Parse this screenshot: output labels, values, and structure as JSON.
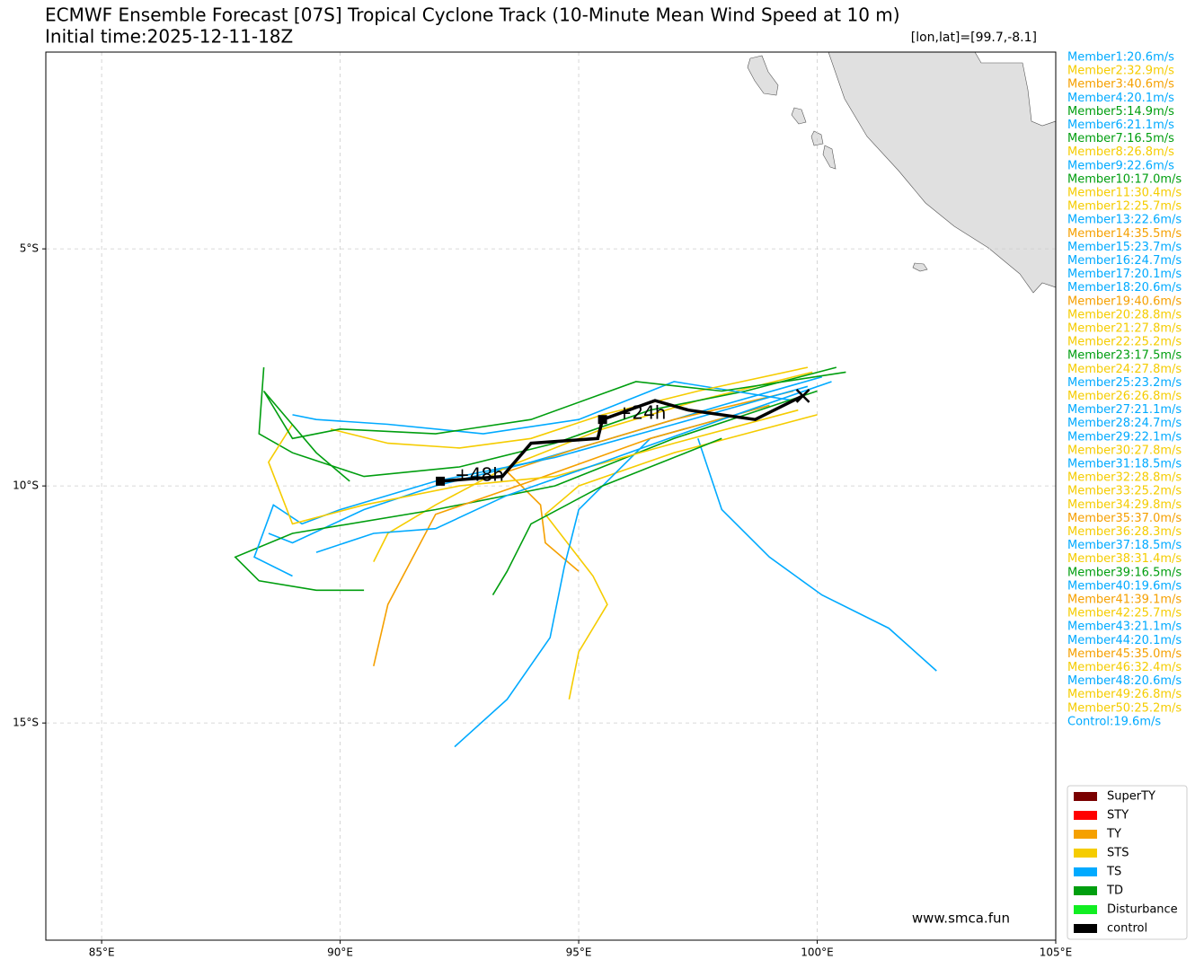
{
  "chart_data": {
    "type": "track",
    "title": "ECMWF Ensemble Forecast [07S] Tropical Cyclone Track (10-Minute Mean Wind Speed at 10 m)",
    "subtitle": "Initial time:2025-12-11-18Z",
    "position_note": "[lon,lat]=[99.7,-8.1]",
    "watermark": "www.smca.fun",
    "xlim": [
      83.83,
      105.0
    ],
    "ylim": [
      -19.58,
      -0.85
    ],
    "xticks": [
      {
        "value": 85,
        "label": "85°E"
      },
      {
        "value": 90,
        "label": "90°E"
      },
      {
        "value": 95,
        "label": "95°E"
      },
      {
        "value": 100,
        "label": "100°E"
      },
      {
        "value": 105,
        "label": "105°E"
      }
    ],
    "yticks": [
      {
        "value": -5,
        "label": "5°S"
      },
      {
        "value": -10,
        "label": "10°S"
      },
      {
        "value": -15,
        "label": "15°S"
      }
    ],
    "grid": true,
    "legend": [
      {
        "name": "SuperTY",
        "color": "#7a0000"
      },
      {
        "name": "STY",
        "color": "#ff0000"
      },
      {
        "name": "TY",
        "color": "#f5a000"
      },
      {
        "name": "STS",
        "color": "#f5cc00"
      },
      {
        "name": "TS",
        "color": "#00aaff"
      },
      {
        "name": "TD",
        "color": "#009e0f"
      },
      {
        "name": "Disturbance",
        "color": "#11ee22"
      },
      {
        "name": "control",
        "color": "#000000"
      }
    ],
    "members": [
      {
        "label": "Member1:20.6m/s",
        "color": "#00aaff",
        "x": [
          100.1,
          98.0,
          96.0,
          94.0,
          92.0,
          90.5,
          89.0,
          88.5
        ],
        "y": [
          -7.7,
          -8.3,
          -8.9,
          -9.5,
          -10.0,
          -10.5,
          -11.2,
          -11.0
        ]
      },
      {
        "label": "Member2:32.9m/s",
        "color": "#f5cc00",
        "x": [
          99.9,
          97.5,
          95.5,
          93.5,
          92.0,
          91.0,
          90.7
        ],
        "y": [
          -7.6,
          -8.2,
          -8.8,
          -9.6,
          -10.4,
          -11.0,
          -11.6
        ]
      },
      {
        "label": "Member3:40.6m/s",
        "color": "#f5a000",
        "x": [
          99.5,
          97.0,
          95.0,
          93.5,
          94.2,
          94.3,
          95.0
        ],
        "y": [
          -8.0,
          -8.6,
          -9.2,
          -9.7,
          -10.4,
          -11.2,
          -11.8
        ]
      },
      {
        "label": "Member4:20.1m/s",
        "color": "#00aaff",
        "x": [
          97.5,
          98.0,
          99.0,
          100.1,
          101.5,
          102.5
        ],
        "y": [
          -9.0,
          -10.5,
          -11.5,
          -12.3,
          -13.0,
          -13.9
        ]
      },
      {
        "label": "Member5:14.9m/s",
        "color": "#009e0f",
        "x": [
          100.4,
          98.5,
          96.5,
          94.5,
          92.5,
          90.5,
          89.0,
          88.3,
          88.4
        ],
        "y": [
          -7.5,
          -8.0,
          -8.4,
          -9.1,
          -9.6,
          -9.8,
          -9.3,
          -8.9,
          -7.5
        ]
      },
      {
        "label": "Member6:21.1m/s",
        "color": "#00aaff",
        "x": [
          99.5,
          97.0,
          95.0,
          93.0,
          91.0,
          89.5,
          89.0
        ],
        "y": [
          -8.2,
          -7.8,
          -8.6,
          -8.9,
          -8.7,
          -8.6,
          -8.5
        ]
      },
      {
        "label": "Member7:16.5m/s",
        "color": "#009e0f"
      },
      {
        "label": "Member8:26.8m/s",
        "color": "#f5cc00",
        "x": [
          100.0,
          97.0,
          95.0,
          94.3,
          95.3,
          95.6,
          95.0,
          94.8
        ],
        "y": [
          -8.5,
          -9.3,
          -10.0,
          -10.6,
          -11.9,
          -12.5,
          -13.5,
          -14.5
        ]
      },
      {
        "label": "Member9:22.6m/s",
        "color": "#00aaff",
        "x": [
          99.0,
          96.5,
          95.0,
          94.7,
          94.4,
          93.5,
          92.4
        ],
        "y": [
          -8.3,
          -9.0,
          -10.5,
          -11.7,
          -13.2,
          -14.5,
          -15.5
        ]
      },
      {
        "label": "Member10:17.0m/s",
        "color": "#009e0f",
        "x": [
          100.0,
          97.0,
          94.5,
          92.0,
          89.0,
          87.8,
          88.3,
          89.5,
          90.5
        ],
        "y": [
          -8.0,
          -9.0,
          -10.0,
          -10.5,
          -11.0,
          -11.5,
          -12.0,
          -12.2,
          -12.2
        ]
      },
      {
        "label": "Member11:30.4m/s",
        "color": "#f5cc00"
      },
      {
        "label": "Member12:25.7m/s",
        "color": "#f5cc00",
        "x": [
          99.8,
          97.5,
          95.5,
          94.0,
          92.5,
          91.0,
          89.8
        ],
        "y": [
          -7.5,
          -8.0,
          -8.5,
          -9.0,
          -9.2,
          -9.1,
          -8.8
        ]
      },
      {
        "label": "Member13:22.6m/s",
        "color": "#00aaff"
      },
      {
        "label": "Member14:35.5m/s",
        "color": "#f5a000",
        "x": [
          99.0,
          96.5,
          94.0,
          92.0,
          91.0,
          90.7
        ],
        "y": [
          -8.3,
          -9.0,
          -9.9,
          -10.6,
          -12.5,
          -13.8
        ]
      },
      {
        "label": "Member15:23.7m/s",
        "color": "#00aaff",
        "x": [
          99.8,
          97.0,
          94.5,
          92.0,
          90.0,
          89.2,
          88.6,
          88.2,
          89.0
        ],
        "y": [
          -7.9,
          -8.7,
          -9.4,
          -9.9,
          -10.5,
          -10.8,
          -10.4,
          -11.5,
          -11.9
        ]
      },
      {
        "label": "Member16:24.7m/s",
        "color": "#00aaff"
      },
      {
        "label": "Member17:20.1m/s",
        "color": "#00aaff"
      },
      {
        "label": "Member18:20.6m/s",
        "color": "#00aaff"
      },
      {
        "label": "Member19:40.6m/s",
        "color": "#f5a000"
      },
      {
        "label": "Member20:28.8m/s",
        "color": "#f5cc00",
        "x": [
          99.6,
          97.0,
          94.5,
          92.5,
          90.5,
          89.0,
          88.5,
          89.0
        ],
        "y": [
          -8.4,
          -9.1,
          -9.8,
          -10.0,
          -10.4,
          -10.8,
          -9.5,
          -8.7
        ]
      },
      {
        "label": "Member21:27.8m/s",
        "color": "#f5cc00"
      },
      {
        "label": "Member22:25.2m/s",
        "color": "#f5cc00"
      },
      {
        "label": "Member23:17.5m/s",
        "color": "#009e0f",
        "x": [
          100.6,
          98.0,
          96.2,
          94.0,
          92.0,
          90.0,
          89.0,
          88.4,
          89.5,
          90.2
        ],
        "y": [
          -7.6,
          -8.0,
          -7.8,
          -8.6,
          -8.9,
          -8.8,
          -9.0,
          -8.0,
          -9.3,
          -9.9
        ]
      },
      {
        "label": "Member24:27.8m/s",
        "color": "#f5cc00"
      },
      {
        "label": "Member25:23.2m/s",
        "color": "#00aaff",
        "x": [
          100.3,
          98.0,
          95.5,
          93.5,
          92.0,
          90.7,
          89.5
        ],
        "y": [
          -7.8,
          -8.6,
          -9.5,
          -10.2,
          -10.9,
          -11.0,
          -11.4
        ]
      },
      {
        "label": "Member26:26.8m/s",
        "color": "#f5cc00"
      },
      {
        "label": "Member27:21.1m/s",
        "color": "#00aaff"
      },
      {
        "label": "Member28:24.7m/s",
        "color": "#00aaff"
      },
      {
        "label": "Member29:22.1m/s",
        "color": "#00aaff"
      },
      {
        "label": "Member30:27.8m/s",
        "color": "#f5cc00"
      },
      {
        "label": "Member31:18.5m/s",
        "color": "#00aaff"
      },
      {
        "label": "Member32:28.8m/s",
        "color": "#f5cc00"
      },
      {
        "label": "Member33:25.2m/s",
        "color": "#f5cc00"
      },
      {
        "label": "Member34:29.8m/s",
        "color": "#f5cc00"
      },
      {
        "label": "Member35:37.0m/s",
        "color": "#f5a000"
      },
      {
        "label": "Member36:28.3m/s",
        "color": "#f5cc00"
      },
      {
        "label": "Member37:18.5m/s",
        "color": "#00aaff"
      },
      {
        "label": "Member38:31.4m/s",
        "color": "#f5cc00"
      },
      {
        "label": "Member39:16.5m/s",
        "color": "#009e0f",
        "x": [
          98.0,
          95.5,
          94.0,
          93.5,
          93.2
        ],
        "y": [
          -9.0,
          -10.0,
          -10.8,
          -11.8,
          -12.3
        ]
      },
      {
        "label": "Member40:19.6m/s",
        "color": "#00aaff"
      },
      {
        "label": "Member41:39.1m/s",
        "color": "#f5a000"
      },
      {
        "label": "Member42:25.7m/s",
        "color": "#f5cc00"
      },
      {
        "label": "Member43:21.1m/s",
        "color": "#00aaff"
      },
      {
        "label": "Member44:20.1m/s",
        "color": "#00aaff"
      },
      {
        "label": "Member45:35.0m/s",
        "color": "#f5a000"
      },
      {
        "label": "Member46:32.4m/s",
        "color": "#f5cc00"
      },
      {
        "label": "Member48:20.6m/s",
        "color": "#00aaff"
      },
      {
        "label": "Member49:26.8m/s",
        "color": "#f5cc00"
      },
      {
        "label": "Member50:25.2m/s",
        "color": "#f5cc00"
      },
      {
        "label": "Control:19.6m/s",
        "color": "#00aaff"
      }
    ],
    "control": {
      "color": "#000000",
      "x": [
        99.7,
        98.7,
        97.3,
        96.6,
        95.5,
        95.4,
        94.0,
        93.4,
        92.1
      ],
      "y": [
        -8.1,
        -8.6,
        -8.4,
        -8.2,
        -8.6,
        -9.0,
        -9.1,
        -9.8,
        -9.9
      ],
      "point_labels": [
        null,
        null,
        null,
        null,
        "+24h",
        null,
        null,
        null,
        "+48h"
      ]
    }
  }
}
